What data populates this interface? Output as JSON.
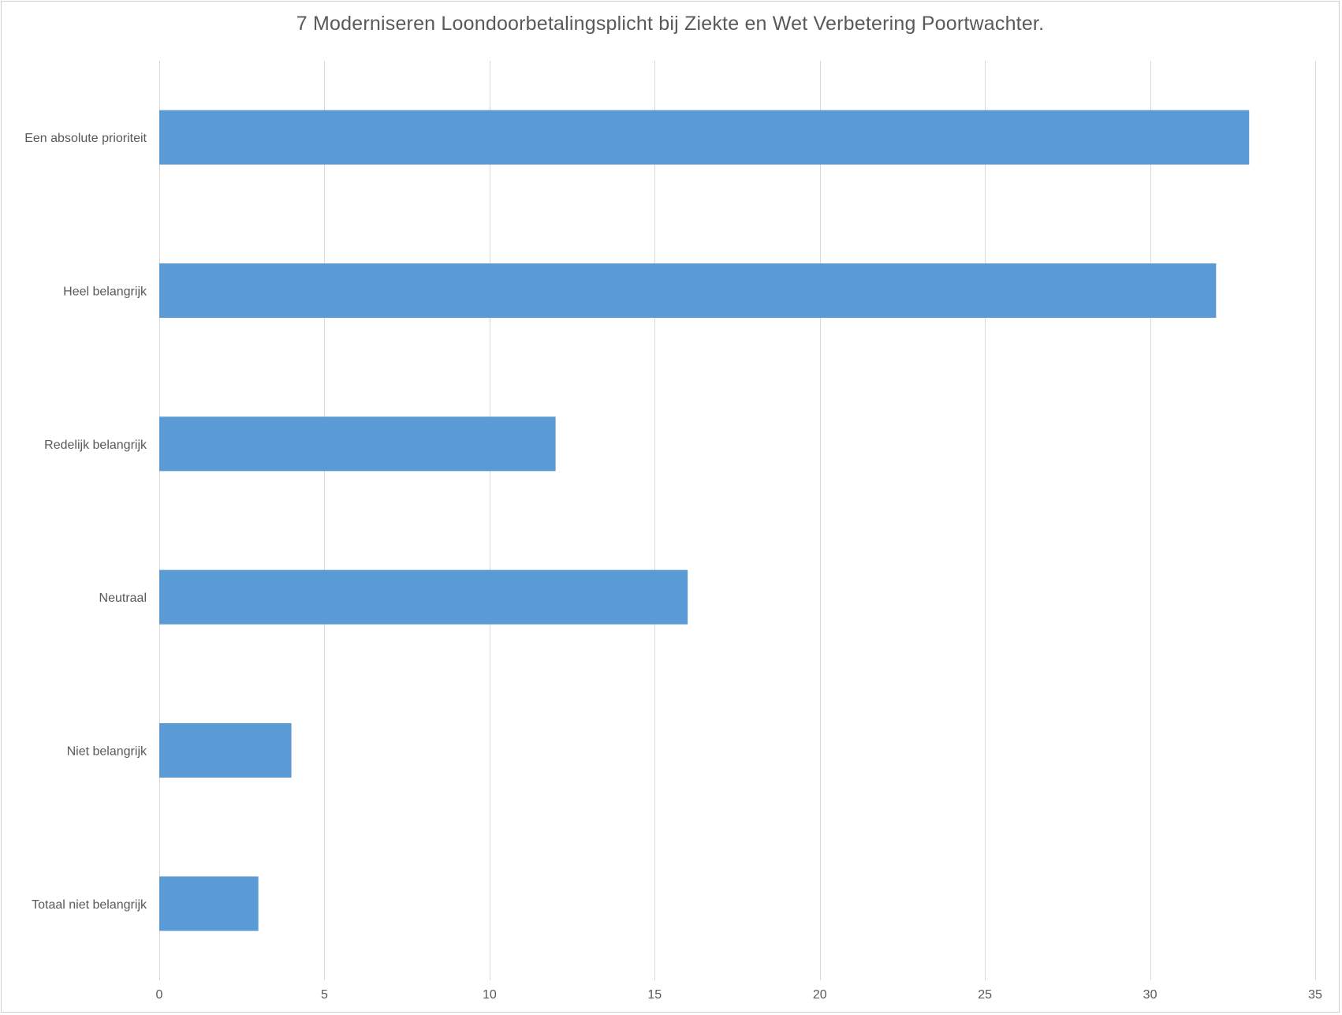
{
  "chart_data": {
    "type": "bar",
    "orientation": "horizontal",
    "title": "7 Moderniseren Loondoorbetalingsplicht bij Ziekte en Wet Verbetering Poortwachter.",
    "categories": [
      "Een absolute prioriteit",
      "Heel belangrijk",
      "Redelijk belangrijk",
      "Neutraal",
      "Niet belangrijk",
      "Totaal niet belangrijk"
    ],
    "values": [
      33,
      32,
      12,
      16,
      4,
      3
    ],
    "xlim": [
      0,
      35
    ],
    "xticks": [
      0,
      5,
      10,
      15,
      20,
      25,
      30,
      35
    ],
    "xlabel": "",
    "ylabel": "",
    "grid": "vertical",
    "legend": "none",
    "bar_color": "#5b9bd5"
  }
}
